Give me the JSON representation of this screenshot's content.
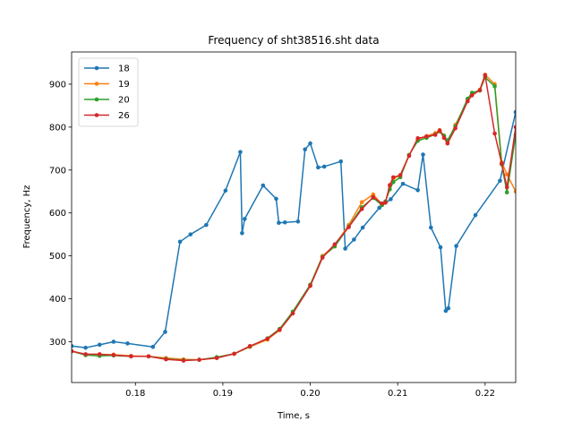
{
  "chart_data": {
    "type": "line",
    "title": "Frequency of sht38516.sht data",
    "xlabel": "Time, s",
    "ylabel": "Frequency, Hz",
    "xlim": [
      0.1727,
      0.2235
    ],
    "ylim": [
      205,
      975
    ],
    "xticks": [
      0.18,
      0.19,
      0.2,
      0.21,
      0.22
    ],
    "xtick_labels": [
      "0.18",
      "0.19",
      "0.20",
      "0.21",
      "0.22"
    ],
    "yticks": [
      300,
      400,
      500,
      600,
      700,
      800,
      900
    ],
    "ytick_labels": [
      "300",
      "400",
      "500",
      "600",
      "700",
      "800",
      "900"
    ],
    "grid": false,
    "legend_position": "top-left",
    "series": [
      {
        "name": "18",
        "color": "#1f77b4",
        "x": [
          0.1727,
          0.1743,
          0.1759,
          0.1775,
          0.1791,
          0.182,
          0.1834,
          0.1851,
          0.1863,
          0.1881,
          0.1903,
          0.192,
          0.1922,
          0.1925,
          0.1946,
          0.1961,
          0.1964,
          0.1971,
          0.1986,
          0.1994,
          0.2,
          0.2009,
          0.2016,
          0.2035,
          0.204,
          0.205,
          0.206,
          0.2079,
          0.2092,
          0.2106,
          0.2123,
          0.2129,
          0.2138,
          0.2149,
          0.2155,
          0.2158,
          0.2167,
          0.2189,
          0.2217,
          0.2235
        ],
        "values": [
          290,
          286,
          293,
          300,
          296,
          288,
          323,
          533,
          550,
          572,
          652,
          742,
          553,
          586,
          664,
          633,
          577,
          578,
          580,
          748,
          762,
          706,
          708,
          720,
          517,
          538,
          566,
          612,
          632,
          668,
          653,
          736,
          566,
          520,
          372,
          378,
          523,
          595,
          675,
          835
        ]
      },
      {
        "name": "19",
        "color": "#ff7f0e",
        "x": [
          0.1727,
          0.1743,
          0.1759,
          0.1775,
          0.1795,
          0.1815,
          0.1835,
          0.1855,
          0.1873,
          0.1893,
          0.1913,
          0.1931,
          0.1951,
          0.1965,
          0.198,
          0.2,
          0.2014,
          0.2028,
          0.2044,
          0.2059,
          0.2072,
          0.2082,
          0.2086,
          0.2091,
          0.2095,
          0.2103,
          0.2113,
          0.2123,
          0.2133,
          0.2143,
          0.2148,
          0.2153,
          0.2157,
          0.2166,
          0.218,
          0.2185,
          0.2194,
          0.22,
          0.2211,
          0.2219,
          0.2225,
          0.2235
        ],
        "values": [
          278,
          269,
          270,
          270,
          267,
          266,
          262,
          259,
          258,
          262,
          272,
          288,
          305,
          327,
          366,
          432,
          500,
          525,
          572,
          625,
          643,
          620,
          626,
          662,
          680,
          688,
          735,
          771,
          779,
          786,
          793,
          780,
          765,
          805,
          862,
          877,
          887,
          922,
          900,
          718,
          690,
          650
        ]
      },
      {
        "name": "20",
        "color": "#2ca02c",
        "x": [
          0.1727,
          0.1743,
          0.1759,
          0.1775,
          0.1795,
          0.1815,
          0.1835,
          0.1855,
          0.1873,
          0.1893,
          0.1913,
          0.1931,
          0.1951,
          0.1965,
          0.198,
          0.2,
          0.2014,
          0.2028,
          0.2044,
          0.2059,
          0.2072,
          0.2082,
          0.2086,
          0.2091,
          0.2095,
          0.2103,
          0.2113,
          0.2123,
          0.2133,
          0.2143,
          0.2148,
          0.2153,
          0.2157,
          0.2166,
          0.218,
          0.2185,
          0.2194,
          0.22,
          0.2211,
          0.2219,
          0.2225,
          0.2235
        ],
        "values": [
          278,
          269,
          267,
          268,
          266,
          266,
          260,
          257,
          258,
          264,
          272,
          289,
          308,
          330,
          370,
          433,
          498,
          522,
          568,
          613,
          635,
          618,
          627,
          655,
          672,
          683,
          735,
          768,
          775,
          783,
          790,
          780,
          769,
          802,
          866,
          880,
          885,
          916,
          895,
          713,
          648,
          782
        ]
      },
      {
        "name": "26",
        "color": "#d62728",
        "x": [
          0.1727,
          0.1743,
          0.1759,
          0.1775,
          0.1795,
          0.1815,
          0.1835,
          0.1855,
          0.1873,
          0.1893,
          0.1913,
          0.1931,
          0.1951,
          0.1965,
          0.198,
          0.2,
          0.2014,
          0.2028,
          0.2044,
          0.2059,
          0.2072,
          0.2082,
          0.2086,
          0.2091,
          0.2095,
          0.2103,
          0.2113,
          0.2123,
          0.2133,
          0.2143,
          0.2148,
          0.2153,
          0.2157,
          0.2166,
          0.218,
          0.2185,
          0.2194,
          0.22,
          0.2211,
          0.2219,
          0.2225,
          0.2235
        ],
        "values": [
          278,
          271,
          271,
          269,
          266,
          266,
          259,
          256,
          258,
          262,
          272,
          290,
          307,
          328,
          366,
          430,
          496,
          527,
          567,
          609,
          637,
          622,
          624,
          665,
          683,
          688,
          733,
          774,
          778,
          782,
          792,
          775,
          762,
          797,
          860,
          874,
          886,
          921,
          785,
          715,
          660,
          800
        ]
      }
    ]
  }
}
